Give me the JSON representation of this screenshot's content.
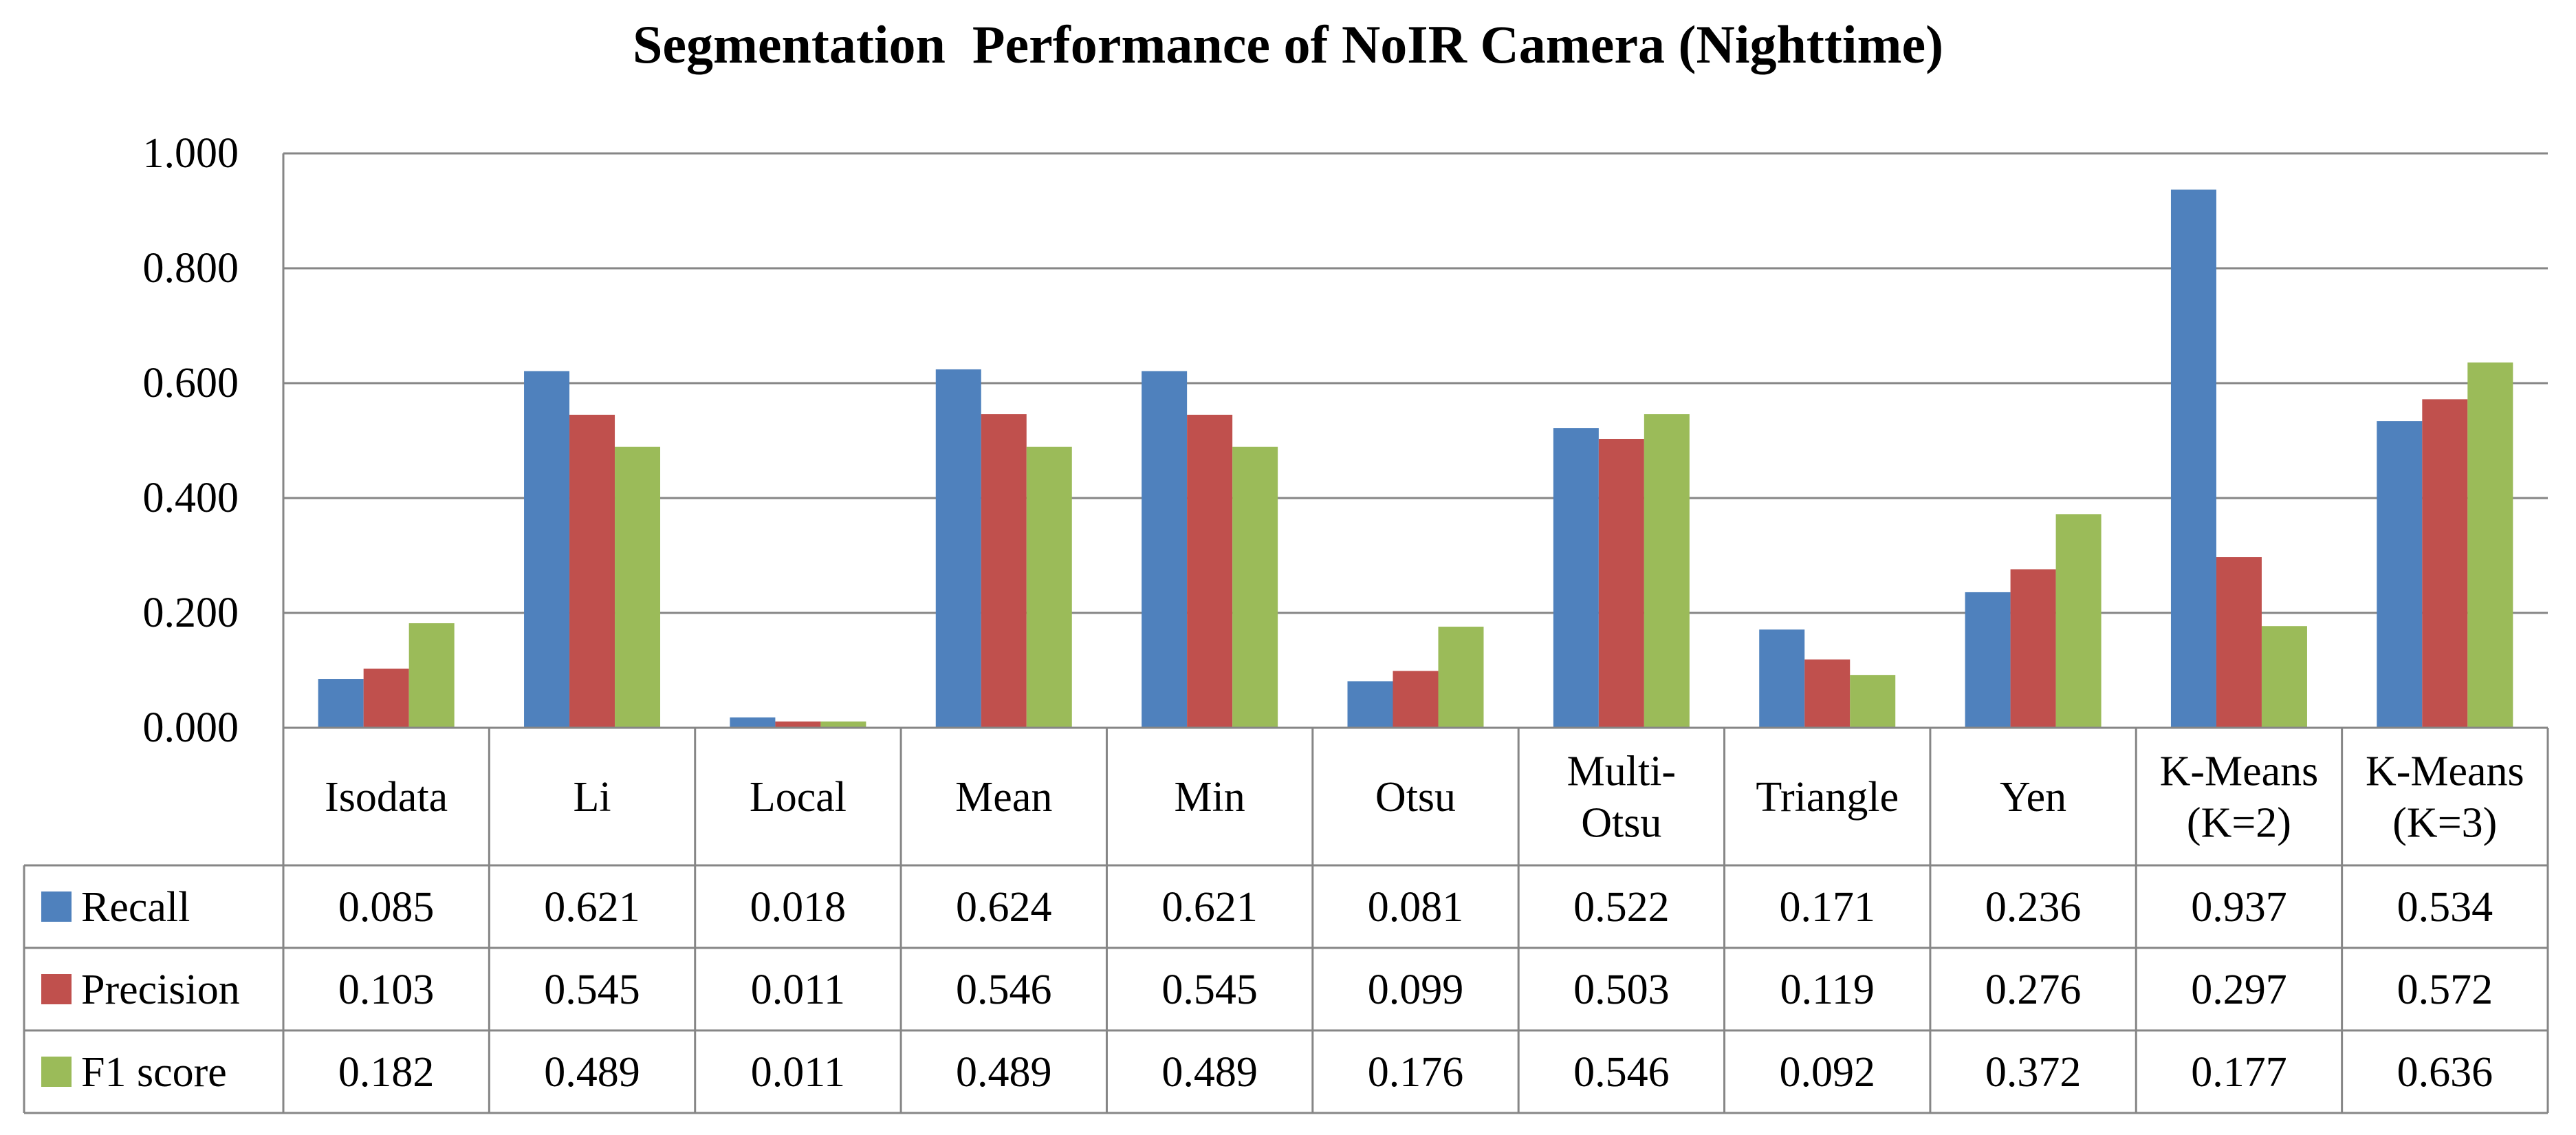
{
  "chart_data": {
    "type": "bar",
    "title": "Segmentation  Performance of NoIR Camera (Nighttime)",
    "xlabel": "",
    "ylabel": "",
    "ylim": [
      0,
      1
    ],
    "yticks": [
      "0.000",
      "0.200",
      "0.400",
      "0.600",
      "0.800",
      "1.000"
    ],
    "grid": true,
    "legend": "left-table",
    "categories": [
      "Isodata",
      "Li",
      "Local",
      "Mean",
      "Min",
      "Otsu",
      "Multi-Otsu",
      "Triangle",
      "Yen",
      "K-Means (K=2)",
      "K-Means (K=3)"
    ],
    "category_lines": [
      [
        "Isodata"
      ],
      [
        "Li"
      ],
      [
        "Local"
      ],
      [
        "Mean"
      ],
      [
        "Min"
      ],
      [
        "Otsu"
      ],
      [
        "Multi-",
        "Otsu"
      ],
      [
        "Triangle"
      ],
      [
        "Yen"
      ],
      [
        "K-Means",
        "(K=2)"
      ],
      [
        "K-Means",
        "(K=3)"
      ]
    ],
    "series": [
      {
        "name": "Recall",
        "color": "#4F81BD",
        "values": [
          0.085,
          0.621,
          0.018,
          0.624,
          0.621,
          0.081,
          0.522,
          0.171,
          0.236,
          0.937,
          0.534
        ],
        "labels": [
          "0.085",
          "0.621",
          "0.018",
          "0.624",
          "0.621",
          "0.081",
          "0.522",
          "0.171",
          "0.236",
          "0.937",
          "0.534"
        ]
      },
      {
        "name": "Precision",
        "color": "#C0504D",
        "values": [
          0.103,
          0.545,
          0.011,
          0.546,
          0.545,
          0.099,
          0.503,
          0.119,
          0.276,
          0.297,
          0.572
        ],
        "labels": [
          "0.103",
          "0.545",
          "0.011",
          "0.546",
          "0.545",
          "0.099",
          "0.503",
          "0.119",
          "0.276",
          "0.297",
          "0.572"
        ]
      },
      {
        "name": "F1 score",
        "color": "#9BBB59",
        "values": [
          0.182,
          0.489,
          0.011,
          0.489,
          0.489,
          0.176,
          0.546,
          0.092,
          0.372,
          0.177,
          0.636
        ],
        "labels": [
          "0.182",
          "0.489",
          "0.011",
          "0.489",
          "0.489",
          "0.176",
          "0.546",
          "0.092",
          "0.372",
          "0.177",
          "0.636"
        ]
      }
    ]
  }
}
